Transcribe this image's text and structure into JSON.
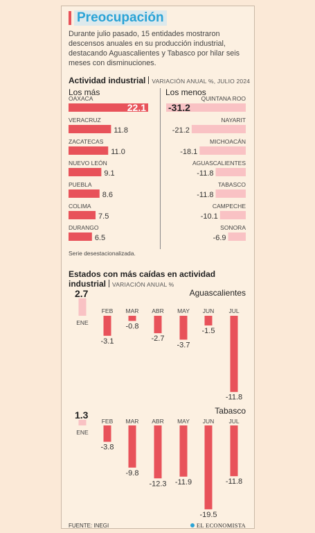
{
  "title": "Preocupación",
  "intro": "Durante julio pasado, 15 entidades mostraron descensos anuales en su producción industrial, destacando Aguascalientes y Tabasco por hilar seis meses con disminuciones.",
  "section1": {
    "title": "Actividad industrial",
    "subtitle": "VARIACIÓN ANUAL %, JULIO 2024"
  },
  "section2": {
    "title_line1": "Estados con más caídas en actividad",
    "title_line2": "industrial",
    "subtitle": "VARIACIÓN ANUAL %"
  },
  "note": "Serie desestacionalizada.",
  "source": "FUENTE: INEGI",
  "logo": "EL ECONOMISTA",
  "colors": {
    "accent": "#e8525a",
    "light": "#f9c2c4",
    "title": "#2aa3d6"
  },
  "chart_data": [
    {
      "type": "bar",
      "orientation": "horizontal",
      "label": "Los más",
      "categories": [
        "OAXACA",
        "VERACRUZ",
        "ZACATECAS",
        "NUEVO LEÓN",
        "PUEBLA",
        "COLIMA",
        "DURANGO"
      ],
      "values": [
        22.1,
        11.8,
        11.0,
        9.1,
        8.6,
        7.5,
        6.5
      ],
      "labels": [
        "22.1",
        "11.8",
        "11.0",
        "9.1",
        "8.6",
        "7.5",
        "6.5"
      ]
    },
    {
      "type": "bar",
      "orientation": "horizontal",
      "label": "Los menos",
      "categories": [
        "QUINTANA ROO",
        "NAYARIT",
        "MICHOACÁN",
        "AGUASCALIENTES",
        "TABASCO",
        "CAMPECHE",
        "SONORA"
      ],
      "values": [
        -31.2,
        -21.2,
        -18.1,
        -11.8,
        -11.8,
        -10.1,
        -6.9
      ],
      "labels": [
        "-31.2",
        "-21.2",
        "-18.1",
        "-11.8",
        "-11.8",
        "-10.1",
        "-6.9"
      ]
    },
    {
      "type": "bar",
      "label": "Aguascalientes",
      "categories": [
        "ENE",
        "FEB",
        "MAR",
        "ABR",
        "MAY",
        "JUN",
        "JUL"
      ],
      "values": [
        2.7,
        -3.1,
        -0.8,
        -2.7,
        -3.7,
        -1.5,
        -11.8
      ],
      "labels": [
        "2.7",
        "-3.1",
        "-0.8",
        "-2.7",
        "-3.7",
        "-1.5",
        "-11.8"
      ]
    },
    {
      "type": "bar",
      "label": "Tabasco",
      "categories": [
        "ENE",
        "FEB",
        "MAR",
        "ABR",
        "MAY",
        "JUN",
        "JUL"
      ],
      "values": [
        1.3,
        -3.8,
        -9.8,
        -12.3,
        -11.9,
        -19.5,
        -11.8
      ],
      "labels": [
        "1.3",
        "-3.8",
        "-9.8",
        "-12.3",
        "-11.9",
        "-19.5",
        "-11.8"
      ]
    }
  ]
}
